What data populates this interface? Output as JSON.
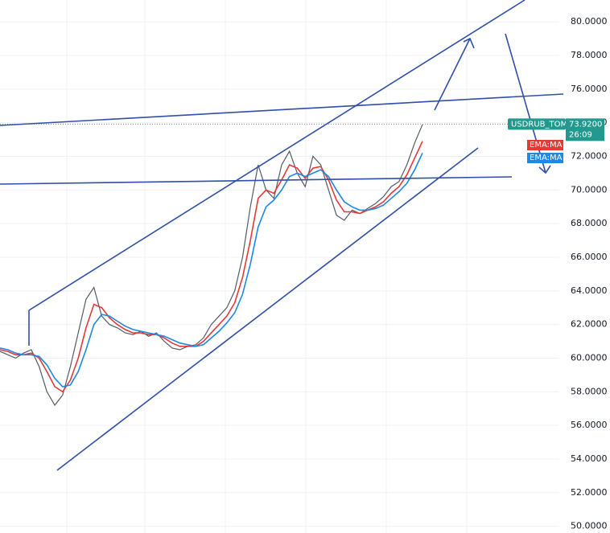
{
  "chart_data": {
    "type": "line",
    "series": [
      {
        "name": "USDRUB_TOM",
        "color": "#555a66",
        "values": [
          60.4,
          60.2,
          60.0,
          60.3,
          60.5,
          59.5,
          58.0,
          57.2,
          57.8,
          59.5,
          61.5,
          63.5,
          64.2,
          62.5,
          62.0,
          61.8,
          61.5,
          61.4,
          61.6,
          61.3,
          61.5,
          61.0,
          60.6,
          60.5,
          60.7,
          60.8,
          61.2,
          62.0,
          62.5,
          63.0,
          64.0,
          66.0,
          69.0,
          71.5,
          70.0,
          69.5,
          71.5,
          72.3,
          71.0,
          70.2,
          72.0,
          71.5,
          70.0,
          68.5,
          68.2,
          68.8,
          68.6,
          68.9,
          69.2,
          69.6,
          70.2,
          70.5,
          71.5,
          72.8,
          73.9
        ]
      },
      {
        "name": "EMA:MA",
        "color": "#e53935",
        "values": [
          60.5,
          60.4,
          60.2,
          60.2,
          60.3,
          60.0,
          59.2,
          58.3,
          58.0,
          58.7,
          60.0,
          61.8,
          63.2,
          63.0,
          62.4,
          62.0,
          61.7,
          61.5,
          61.5,
          61.4,
          61.4,
          61.2,
          60.9,
          60.7,
          60.7,
          60.7,
          61.0,
          61.5,
          62.0,
          62.5,
          63.3,
          64.8,
          67.0,
          69.5,
          70.0,
          69.8,
          70.6,
          71.5,
          71.3,
          70.7,
          71.3,
          71.4,
          70.6,
          69.4,
          68.7,
          68.7,
          68.6,
          68.8,
          69.0,
          69.3,
          69.8,
          70.2,
          70.9,
          71.9,
          72.9
        ]
      },
      {
        "name": "EMA:MA",
        "color": "#1e88e5",
        "values": [
          60.6,
          60.5,
          60.3,
          60.2,
          60.2,
          60.1,
          59.6,
          58.8,
          58.3,
          58.4,
          59.2,
          60.5,
          62.0,
          62.6,
          62.5,
          62.2,
          61.9,
          61.7,
          61.6,
          61.5,
          61.4,
          61.3,
          61.1,
          60.9,
          60.8,
          60.7,
          60.8,
          61.2,
          61.6,
          62.1,
          62.7,
          63.8,
          65.6,
          67.8,
          69.0,
          69.4,
          70.0,
          70.8,
          71.0,
          70.8,
          71.0,
          71.2,
          70.8,
          70.0,
          69.3,
          69.0,
          68.8,
          68.8,
          68.9,
          69.1,
          69.5,
          69.9,
          70.4,
          71.2,
          72.2
        ]
      }
    ],
    "last_label": "USDRUB_TOM",
    "last_value": {
      "value": 73.92,
      "label": "73.9200"
    },
    "countdown": "26:09",
    "ylim": [
      49.6,
      81.3
    ],
    "yticks": [
      {
        "value": 50,
        "label": "50.0000"
      },
      {
        "value": 52,
        "label": "52.0000"
      },
      {
        "value": 54,
        "label": "54.0000"
      },
      {
        "value": 56,
        "label": "56.0000"
      },
      {
        "value": 58,
        "label": "58.0000"
      },
      {
        "value": 60,
        "label": "60.0000"
      },
      {
        "value": 62,
        "label": "62.0000"
      },
      {
        "value": 64,
        "label": "64.0000"
      },
      {
        "value": 66,
        "label": "66.0000"
      },
      {
        "value": 68,
        "label": "68.0000"
      },
      {
        "value": 70,
        "label": "70.0000"
      },
      {
        "value": 72,
        "label": "72.0000"
      },
      {
        "value": 74,
        "label": "74.0000"
      },
      {
        "value": 76,
        "label": "76.0000"
      },
      {
        "value": 78,
        "label": "78.0000"
      },
      {
        "value": 80,
        "label": "80.0000"
      }
    ],
    "grid": true
  }
}
